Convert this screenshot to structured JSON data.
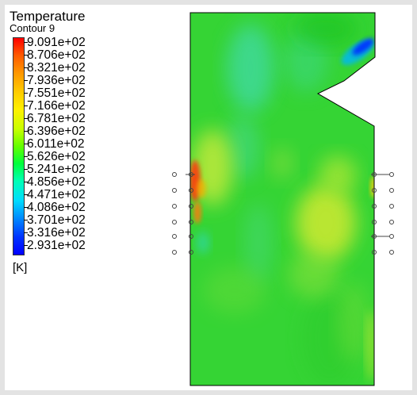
{
  "legend": {
    "title": "Temperature",
    "subtitle": "Contour 9",
    "unit": "[K]",
    "ticks": [
      "9.091e+02",
      "8.706e+02",
      "8.321e+02",
      "7.936e+02",
      "7.551e+02",
      "7.166e+02",
      "6.781e+02",
      "6.396e+02",
      "6.011e+02",
      "5.626e+02",
      "5.241e+02",
      "4.856e+02",
      "4.471e+02",
      "4.086e+02",
      "3.701e+02",
      "3.316e+02",
      "2.931e+02"
    ],
    "colormap": "rainbow",
    "colors": {
      "max": "#ff0000",
      "mid": "#00ff00",
      "min": "#0000ff"
    }
  },
  "view": {
    "background": "#ffffff",
    "domain_fill": "#33d633"
  }
}
